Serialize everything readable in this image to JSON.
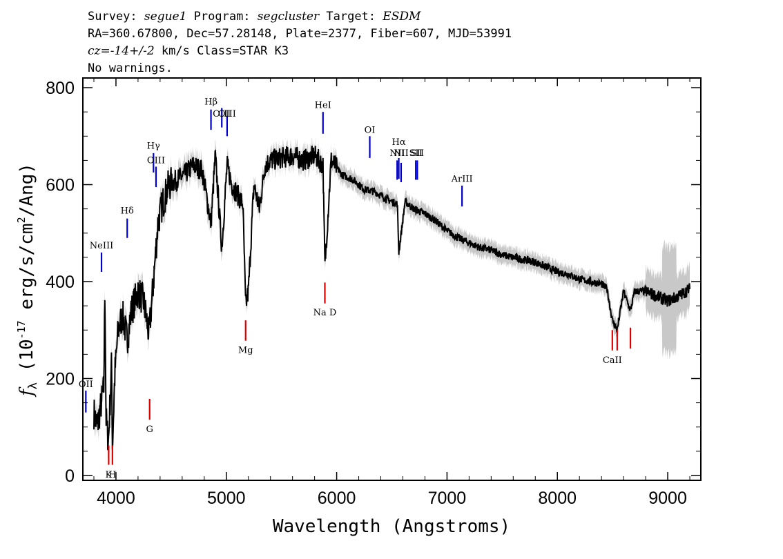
{
  "header": {
    "survey_label": "Survey:",
    "survey": "segue1",
    "program_label": "Program:",
    "program": "segcluster",
    "target_label": "Target:",
    "target": "ESDM",
    "line2": "RA=360.67800, Dec=57.28148, Plate=2377, Fiber=607, MJD=53991",
    "cz_label": "cz=",
    "cz_value": "-14+/-2",
    "cz_rest": " km/s Class=STAR K3",
    "line4": "No warnings."
  },
  "chart_data": {
    "type": "line",
    "title": "",
    "xlabel": "Wavelength (Angstroms)",
    "ylabel_prefix": "f",
    "ylabel_sub": "λ",
    "ylabel_main": " (10",
    "ylabel_sup": "-17",
    "ylabel_rest": " erg/s/cm",
    "ylabel_sup2": "2",
    "ylabel_end": "/Ang)",
    "xlim": [
      3700,
      9300
    ],
    "ylim": [
      -10,
      820
    ],
    "x_ticks": [
      4000,
      5000,
      6000,
      7000,
      8000,
      9000
    ],
    "x_tick_labels": [
      "4000",
      "5000",
      "6000",
      "7000",
      "8000",
      "9000"
    ],
    "y_ticks": [
      0,
      200,
      400,
      600,
      800
    ],
    "y_tick_labels": [
      "0",
      "200",
      "400",
      "600",
      "800"
    ],
    "colors": {
      "flux": "#000000",
      "error": "#c8c8c8",
      "emission": "#0000cc",
      "absorption": "#dd0000"
    },
    "series": [
      {
        "name": "flux",
        "x": [
          3800,
          3830,
          3860,
          3890,
          3900,
          3910,
          3920,
          3933,
          3960,
          3968,
          3990,
          4020,
          4060,
          4102,
          4140,
          4200,
          4250,
          4300,
          4340,
          4380,
          4420,
          4480,
          4550,
          4620,
          4700,
          4780,
          4861,
          4900,
          4959,
          5007,
          5050,
          5100,
          5150,
          5175,
          5200,
          5250,
          5300,
          5350,
          5400,
          5500,
          5600,
          5700,
          5800,
          5876,
          5893,
          5950,
          6050,
          6150,
          6250,
          6350,
          6450,
          6550,
          6563,
          6620,
          6700,
          6800,
          6900,
          7000,
          7100,
          7200,
          7300,
          7400,
          7500,
          7600,
          7700,
          7800,
          7900,
          8000,
          8100,
          8200,
          8300,
          8400,
          8450,
          8498,
          8542,
          8600,
          8662,
          8700,
          8800,
          8900,
          9000,
          9100,
          9200
        ],
        "y": [
          130,
          100,
          140,
          180,
          395,
          120,
          90,
          75,
          230,
          60,
          210,
          300,
          330,
          280,
          340,
          380,
          360,
          290,
          400,
          520,
          560,
          600,
          610,
          620,
          640,
          630,
          520,
          660,
          470,
          640,
          600,
          580,
          560,
          350,
          380,
          600,
          550,
          640,
          650,
          655,
          660,
          650,
          660,
          640,
          430,
          650,
          620,
          610,
          590,
          585,
          570,
          560,
          460,
          565,
          550,
          540,
          525,
          505,
          490,
          480,
          470,
          465,
          455,
          450,
          445,
          440,
          430,
          420,
          415,
          405,
          400,
          395,
          385,
          320,
          300,
          380,
          340,
          380,
          380,
          370,
          360,
          370,
          385
        ]
      }
    ],
    "line_markers": [
      {
        "label": "OII",
        "x": 3727,
        "kind": "emission",
        "y0": 130,
        "y1": 175,
        "label_y": 182
      },
      {
        "label": "NeIII",
        "x": 3869,
        "kind": "emission",
        "y0": 420,
        "y1": 460,
        "label_y": 468
      },
      {
        "label": "Hδ",
        "x": 4102,
        "kind": "emission",
        "y0": 490,
        "y1": 530,
        "label_y": 540
      },
      {
        "label": "Hγ",
        "x": 4340,
        "kind": "emission",
        "y0": 625,
        "y1": 665,
        "label_y": 674
      },
      {
        "label": "OIII",
        "x": 4363,
        "kind": "emission",
        "y0": 595,
        "y1": 637,
        "label_y": 644
      },
      {
        "label": "Hβ",
        "x": 4861,
        "kind": "emission",
        "y0": 713,
        "y1": 755,
        "label_y": 765
      },
      {
        "label": "OIII",
        "x": 4959,
        "kind": "emission",
        "y0": 718,
        "y1": 758,
        "label_y": 740
      },
      {
        "label": "OIII",
        "x": 5007,
        "kind": "emission",
        "y0": 700,
        "y1": 742,
        "label_y": 740
      },
      {
        "label": "HeI",
        "x": 5876,
        "kind": "emission",
        "y0": 705,
        "y1": 750,
        "label_y": 758
      },
      {
        "label": "OI",
        "x": 6300,
        "kind": "emission",
        "y0": 655,
        "y1": 700,
        "label_y": 707
      },
      {
        "label": "NII",
        "x": 6548,
        "kind": "emission",
        "y0": 610,
        "y1": 650,
        "label_y": 659
      },
      {
        "label": "Hα",
        "x": 6563,
        "kind": "emission",
        "y0": 612,
        "y1": 655,
        "label_y": 682
      },
      {
        "label": "NII",
        "x": 6584,
        "kind": "emission",
        "y0": 605,
        "y1": 645,
        "label_y": 659
      },
      {
        "label": "SII",
        "x": 6717,
        "kind": "emission",
        "y0": 610,
        "y1": 650,
        "label_y": 659
      },
      {
        "label": "SII",
        "x": 6731,
        "kind": "emission",
        "y0": 610,
        "y1": 650,
        "label_y": 659
      },
      {
        "label": "ArIII",
        "x": 7136,
        "kind": "emission",
        "y0": 555,
        "y1": 598,
        "label_y": 606
      },
      {
        "label": "K",
        "x": 3934,
        "kind": "absorption",
        "y0": 22,
        "y1": 62,
        "label_y": -4
      },
      {
        "label": "H",
        "x": 3968,
        "kind": "absorption",
        "y0": 22,
        "y1": 62,
        "label_y": -4
      },
      {
        "label": "G",
        "x": 4305,
        "kind": "absorption",
        "y0": 115,
        "y1": 158,
        "label_y": 90
      },
      {
        "label": "Mg",
        "x": 5175,
        "kind": "absorption",
        "y0": 278,
        "y1": 320,
        "label_y": 253
      },
      {
        "label": "Na D",
        "x": 5893,
        "kind": "absorption",
        "y0": 355,
        "y1": 398,
        "label_y": 330
      },
      {
        "label": "CaII",
        "x": 8498,
        "kind": "absorption",
        "y0": 258,
        "y1": 300,
        "label_y": 232
      },
      {
        "label": "CaII",
        "x": 8542,
        "kind": "absorption",
        "y0": 258,
        "y1": 300,
        "label_y": 232
      },
      {
        "label": "CaII",
        "x": 8662,
        "kind": "absorption",
        "y0": 262,
        "y1": 305,
        "label_y": 232
      }
    ]
  }
}
